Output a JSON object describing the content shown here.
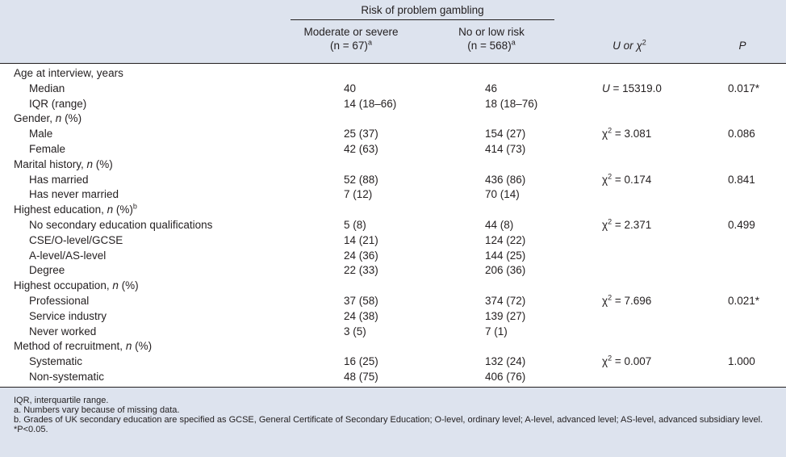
{
  "header": {
    "group_label": "Risk of problem gambling",
    "col_mod_line1": "Moderate or severe",
    "col_mod_n": "(n = 67)",
    "col_mod_sup": "a",
    "col_no_line1": "No or low risk",
    "col_no_n": "(n = 568)",
    "col_no_sup": "a",
    "col_stat": "U or χ",
    "col_stat_sup": "2",
    "col_p": "P"
  },
  "rows": [
    {
      "label": "Age at interview, years",
      "indent": false
    },
    {
      "label": "Median",
      "indent": true,
      "mod": "40",
      "no": "46",
      "stat": "U = 15319.0",
      "p": "0.017*"
    },
    {
      "label": "IQR (range)",
      "indent": true,
      "mod": "14 (18–66)",
      "no": "18 (18–76)"
    },
    {
      "label": "Gender, n (%)",
      "indent": false
    },
    {
      "label": "Male",
      "indent": true,
      "mod": "25 (37)",
      "no": "154 (27)",
      "stat": "χ2 = 3.081",
      "p": "0.086"
    },
    {
      "label": "Female",
      "indent": true,
      "mod": "42 (63)",
      "no": "414 (73)"
    },
    {
      "label": "Marital history, n (%)",
      "indent": false
    },
    {
      "label": "Has married",
      "indent": true,
      "mod": "52 (88)",
      "no": "436 (86)",
      "stat": "χ2 = 0.174",
      "p": "0.841"
    },
    {
      "label": "Has never married",
      "indent": true,
      "mod": "7 (12)",
      "no": "70 (14)"
    },
    {
      "label": "Highest education, n (%)",
      "sup": "b",
      "indent": false
    },
    {
      "label": "No secondary education qualifications",
      "indent": true,
      "mod": "5 (8)",
      "no": "44 (8)",
      "stat": "χ2 = 2.371",
      "p": "0.499"
    },
    {
      "label": "CSE/O-level/GCSE",
      "indent": true,
      "mod": "14 (21)",
      "no": "124 (22)"
    },
    {
      "label": "A-level/AS-level",
      "indent": true,
      "mod": "24 (36)",
      "no": "144 (25)"
    },
    {
      "label": "Degree",
      "indent": true,
      "mod": "22 (33)",
      "no": "206 (36)"
    },
    {
      "label": "Highest occupation, n (%)",
      "indent": false
    },
    {
      "label": "Professional",
      "indent": true,
      "mod": "37 (58)",
      "no": "374 (72)",
      "stat": "χ2 = 7.696",
      "p": "0.021*"
    },
    {
      "label": "Service industry",
      "indent": true,
      "mod": "24 (38)",
      "no": "139 (27)"
    },
    {
      "label": "Never worked",
      "indent": true,
      "mod": "3 (5)",
      "no": "7 (1)"
    },
    {
      "label": "Method of recruitment, n (%)",
      "indent": false
    },
    {
      "label": "Systematic",
      "indent": true,
      "mod": "16 (25)",
      "no": "132 (24)",
      "stat": "χ2 = 0.007",
      "p": "1.000"
    },
    {
      "label": "Non-systematic",
      "indent": true,
      "mod": "48 (75)",
      "no": "406 (76)"
    }
  ],
  "footnotes": [
    "IQR, interquartile range.",
    "a. Numbers vary because of missing data.",
    "b. Grades of UK secondary education are specified as GCSE, General Certificate of Secondary Education; O-level, ordinary level; A-level, advanced level; AS-level, advanced subsidiary level.",
    "*P<0.05."
  ]
}
